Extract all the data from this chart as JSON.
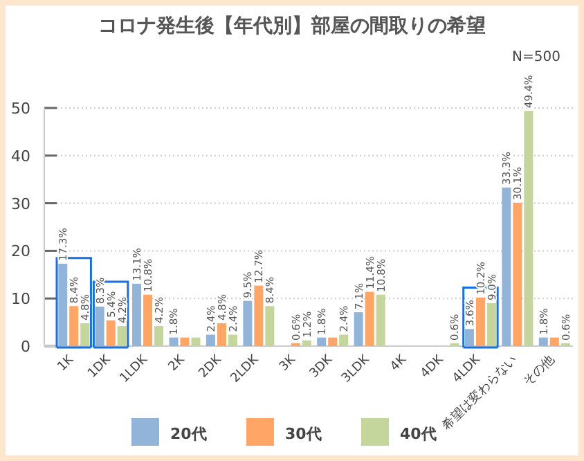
{
  "chart_data": {
    "type": "bar",
    "title": "コロナ発生後【年代別】部屋の間取りの希望",
    "annotations": [
      "N=500"
    ],
    "categories": [
      "1K",
      "1DK",
      "1LDK",
      "2K",
      "2DK",
      "2LDK",
      "3K",
      "3DK",
      "3LDK",
      "4K",
      "4DK",
      "4LDK",
      "希望は変わらない",
      "その他"
    ],
    "series": [
      {
        "name": "20代",
        "color": "#92b4d8",
        "values": [
          17.3,
          8.3,
          13.1,
          1.8,
          2.4,
          9.5,
          0,
          1.8,
          7.1,
          0,
          0,
          3.6,
          33.3,
          1.8
        ],
        "value_labels": [
          "17.3%",
          "8.3%",
          "13.1%",
          "1.8%",
          "2.4%",
          "9.5%",
          null,
          "1.8%",
          "7.1%",
          null,
          null,
          "3.6%",
          "33.3%",
          "1.8%"
        ]
      },
      {
        "name": "30代",
        "color": "#ffa566",
        "values": [
          8.4,
          5.4,
          10.8,
          1.8,
          4.8,
          12.7,
          0.6,
          1.8,
          11.4,
          0,
          0,
          10.2,
          30.1,
          1.8
        ],
        "value_labels": [
          "8.4%",
          "5.4%",
          "10.8%",
          null,
          "4.8%",
          "12.7%",
          "0.6%",
          null,
          "11.4%",
          null,
          null,
          "10.2%",
          "30.1%",
          null
        ]
      },
      {
        "name": "40代",
        "color": "#c4d69c",
        "values": [
          4.8,
          4.2,
          4.2,
          1.8,
          2.4,
          8.4,
          1.2,
          2.4,
          10.8,
          0,
          0.6,
          9.0,
          49.4,
          0.6
        ],
        "value_labels": [
          "4.8%",
          "4.2%",
          "4.2%",
          null,
          "2.4%",
          "8.4%",
          "1.2%",
          "2.4%",
          "10.8%",
          null,
          "0.6%",
          "9.0%",
          "49.4%",
          "0.6%"
        ]
      }
    ],
    "ylim": [
      0,
      50
    ],
    "yticks": [
      0,
      10,
      20,
      30,
      40,
      50
    ],
    "grid": "y",
    "legend": "bottom"
  }
}
